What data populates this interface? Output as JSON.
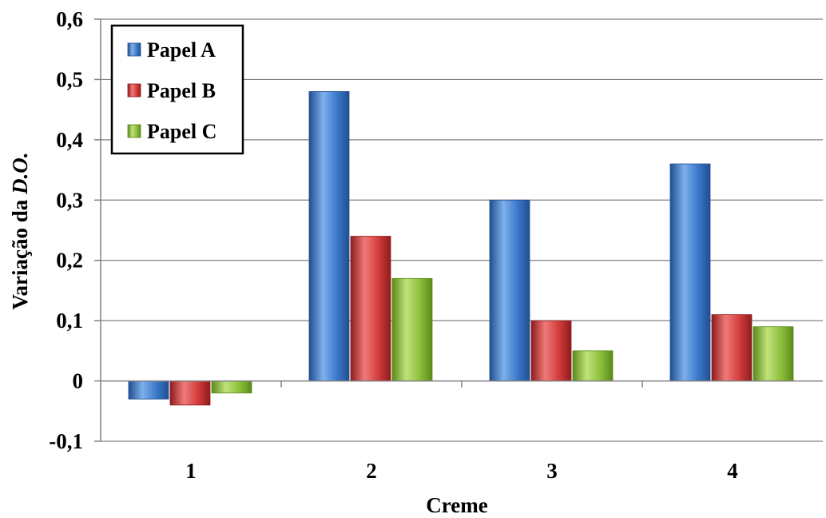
{
  "chart_data": {
    "type": "bar",
    "title": "",
    "xlabel": "Creme",
    "ylabel_prefix": "Variação da ",
    "ylabel_italic": "D.O.",
    "categories": [
      "1",
      "2",
      "3",
      "4"
    ],
    "ylim": [
      -0.1,
      0.6
    ],
    "yticks": [
      -0.1,
      0,
      0.1,
      0.2,
      0.3,
      0.4,
      0.5,
      0.6
    ],
    "ytick_labels": [
      "-0,1",
      "0",
      "0,1",
      "0,2",
      "0,3",
      "0,4",
      "0,5",
      "0,6"
    ],
    "grid": true,
    "legend_position": "top-left",
    "series": [
      {
        "name": "Papel A",
        "values": [
          -0.03,
          0.48,
          0.3,
          0.36
        ],
        "color": "#3a78c9",
        "dark": "#1f4f91",
        "light": "#7eb0ec"
      },
      {
        "name": "Papel B",
        "values": [
          -0.04,
          0.24,
          0.1,
          0.11
        ],
        "color": "#d23b3b",
        "dark": "#8e1c1c",
        "light": "#f07a7a"
      },
      {
        "name": "Papel C",
        "values": [
          -0.02,
          0.17,
          0.05,
          0.09
        ],
        "color": "#8cbf3a",
        "dark": "#5a8a1a",
        "light": "#c0e27a"
      }
    ]
  }
}
